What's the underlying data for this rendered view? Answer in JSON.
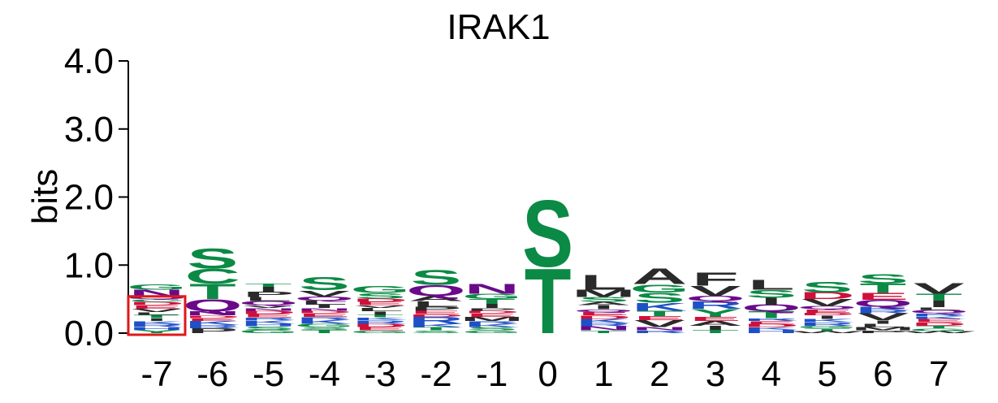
{
  "chart_data": {
    "type": "sequence-logo",
    "title": "IRAK1",
    "ylabel": "bits",
    "xlabel": "",
    "ylim": [
      0,
      4
    ],
    "y_ticks": [
      "0.0",
      "1.0",
      "2.0",
      "3.0",
      "4.0"
    ],
    "y_tick_values": [
      0,
      1,
      2,
      3,
      4
    ],
    "positions": [
      "-7",
      "-6",
      "-5",
      "-4",
      "-3",
      "-2",
      "-1",
      "0",
      "1",
      "2",
      "3",
      "4",
      "5",
      "6",
      "7"
    ],
    "colors": {
      "polar": "#0B8A45",
      "amide": "#6A0A8A",
      "basic": "#1E50C8",
      "acidic": "#D0103A",
      "hydrophobic": "#2A2A2A"
    },
    "letter_colors": {
      "S": "polar",
      "T": "polar",
      "G": "polar",
      "C": "polar",
      "Y": "polar",
      "N": "amide",
      "Q": "amide",
      "K": "basic",
      "R": "basic",
      "H": "basic",
      "D": "acidic",
      "E": "acidic",
      "A": "hydrophobic",
      "V": "hydrophobic",
      "L": "hydrophobic",
      "I": "hydrophobic",
      "P": "hydrophobic",
      "W": "hydrophobic",
      "F": "hydrophobic",
      "M": "hydrophobic"
    },
    "stacks": [
      [
        [
          "Y",
          0.05
        ],
        [
          "H",
          0.04
        ],
        [
          "R",
          0.05
        ],
        [
          "K",
          0.04
        ],
        [
          "I",
          0.04
        ],
        [
          "T",
          0.05
        ],
        [
          "L",
          0.04
        ],
        [
          "V",
          0.05
        ],
        [
          "E",
          0.05
        ],
        [
          "D",
          0.05
        ],
        [
          "C",
          0.04
        ],
        [
          "Q",
          0.04
        ],
        [
          "N",
          0.1
        ],
        [
          "G",
          0.08
        ]
      ],
      [
        [
          "P",
          0.07
        ],
        [
          "R",
          0.05
        ],
        [
          "K",
          0.06
        ],
        [
          "E",
          0.04
        ],
        [
          "D",
          0.04
        ],
        [
          "N",
          0.06
        ],
        [
          "Q",
          0.18
        ],
        [
          "T",
          0.23
        ],
        [
          "C",
          0.22
        ],
        [
          "S",
          0.3
        ]
      ],
      [
        [
          "G",
          0.05
        ],
        [
          "S",
          0.05
        ],
        [
          "H",
          0.04
        ],
        [
          "K",
          0.05
        ],
        [
          "R",
          0.04
        ],
        [
          "E",
          0.05
        ],
        [
          "D",
          0.05
        ],
        [
          "N",
          0.04
        ],
        [
          "V",
          0.04
        ],
        [
          "Q",
          0.06
        ],
        [
          "L",
          0.06
        ],
        [
          "P",
          0.08
        ],
        [
          "I",
          0.07
        ],
        [
          "T",
          0.05
        ]
      ],
      [
        [
          "T",
          0.05
        ],
        [
          "S",
          0.04
        ],
        [
          "G",
          0.05
        ],
        [
          "K",
          0.06
        ],
        [
          "R",
          0.04
        ],
        [
          "E",
          0.05
        ],
        [
          "D",
          0.04
        ],
        [
          "N",
          0.04
        ],
        [
          "I",
          0.05
        ],
        [
          "L",
          0.06
        ],
        [
          "Q",
          0.06
        ],
        [
          "V",
          0.09
        ],
        [
          "S",
          0.2
        ]
      ],
      [
        [
          "G",
          0.04
        ],
        [
          "E",
          0.05
        ],
        [
          "D",
          0.05
        ],
        [
          "R",
          0.05
        ],
        [
          "K",
          0.04
        ],
        [
          "T",
          0.04
        ],
        [
          "I",
          0.05
        ],
        [
          "L",
          0.05
        ],
        [
          "V",
          0.04
        ],
        [
          "E",
          0.05
        ],
        [
          "D",
          0.05
        ],
        [
          "S",
          0.08
        ],
        [
          "G",
          0.1
        ]
      ],
      [
        [
          "S",
          0.04
        ],
        [
          "T",
          0.05
        ],
        [
          "K",
          0.05
        ],
        [
          "R",
          0.1
        ],
        [
          "D",
          0.04
        ],
        [
          "E",
          0.05
        ],
        [
          "P",
          0.06
        ],
        [
          "L",
          0.08
        ],
        [
          "A",
          0.08
        ],
        [
          "Q",
          0.16
        ],
        [
          "S",
          0.22
        ]
      ],
      [
        [
          "G",
          0.04
        ],
        [
          "S",
          0.05
        ],
        [
          "K",
          0.05
        ],
        [
          "R",
          0.04
        ],
        [
          "M",
          0.06
        ],
        [
          "E",
          0.05
        ],
        [
          "D",
          0.04
        ],
        [
          "P",
          0.04
        ],
        [
          "I",
          0.06
        ],
        [
          "T",
          0.07
        ],
        [
          "G",
          0.08
        ],
        [
          "N",
          0.15
        ]
      ],
      [
        [
          "T",
          0.98
        ],
        [
          "S",
          1.0
        ]
      ],
      [
        [
          "T",
          0.04
        ],
        [
          "N",
          0.06
        ],
        [
          "R",
          0.05
        ],
        [
          "K",
          0.06
        ],
        [
          "D",
          0.05
        ],
        [
          "E",
          0.05
        ],
        [
          "Q",
          0.04
        ],
        [
          "I",
          0.06
        ],
        [
          "A",
          0.05
        ],
        [
          "S",
          0.07
        ],
        [
          "M",
          0.11
        ],
        [
          "L",
          0.22
        ]
      ],
      [
        [
          "R",
          0.04
        ],
        [
          "N",
          0.05
        ],
        [
          "V",
          0.1
        ],
        [
          "E",
          0.06
        ],
        [
          "T",
          0.08
        ],
        [
          "K",
          0.12
        ],
        [
          "S",
          0.15
        ],
        [
          "G",
          0.12
        ],
        [
          "A",
          0.24
        ]
      ],
      [
        [
          "T",
          0.05
        ],
        [
          "I",
          0.06
        ],
        [
          "A",
          0.07
        ],
        [
          "E",
          0.06
        ],
        [
          "Y",
          0.12
        ],
        [
          "R",
          0.11
        ],
        [
          "Q",
          0.08
        ],
        [
          "V",
          0.15
        ],
        [
          "F",
          0.2
        ]
      ],
      [
        [
          "H",
          0.05
        ],
        [
          "K",
          0.04
        ],
        [
          "D",
          0.05
        ],
        [
          "E",
          0.04
        ],
        [
          "R",
          0.04
        ],
        [
          "T",
          0.1
        ],
        [
          "Q",
          0.1
        ],
        [
          "I",
          0.1
        ],
        [
          "S",
          0.12
        ],
        [
          "L",
          0.15
        ]
      ],
      [
        [
          "W",
          0.03
        ],
        [
          "T",
          0.04
        ],
        [
          "G",
          0.04
        ],
        [
          "R",
          0.05
        ],
        [
          "K",
          0.05
        ],
        [
          "I",
          0.05
        ],
        [
          "D",
          0.04
        ],
        [
          "E",
          0.05
        ],
        [
          "Q",
          0.05
        ],
        [
          "V",
          0.1
        ],
        [
          "D",
          0.1
        ],
        [
          "S",
          0.16
        ]
      ],
      [
        [
          "P",
          0.04
        ],
        [
          "M",
          0.05
        ],
        [
          "L",
          0.05
        ],
        [
          "I",
          0.05
        ],
        [
          "V",
          0.1
        ],
        [
          "R",
          0.05
        ],
        [
          "K",
          0.05
        ],
        [
          "Q",
          0.1
        ],
        [
          "E",
          0.1
        ],
        [
          "T",
          0.14
        ],
        [
          "S",
          0.14
        ]
      ],
      [
        [
          "W",
          0.03
        ],
        [
          "G",
          0.04
        ],
        [
          "T",
          0.04
        ],
        [
          "D",
          0.05
        ],
        [
          "E",
          0.05
        ],
        [
          "K",
          0.04
        ],
        [
          "R",
          0.04
        ],
        [
          "Q",
          0.05
        ],
        [
          "L",
          0.04
        ],
        [
          "I",
          0.1
        ],
        [
          "T",
          0.1
        ],
        [
          "V",
          0.16
        ]
      ]
    ],
    "highlight_position": "-7",
    "highlight_color": "#E01818"
  }
}
